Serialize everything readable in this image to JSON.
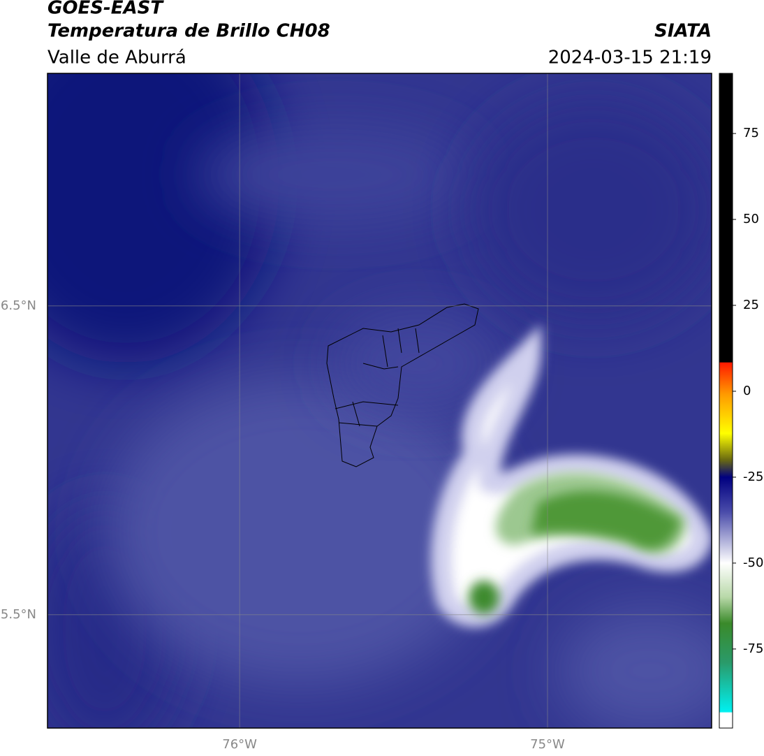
{
  "header": {
    "title": "GOES-EAST",
    "subtitle": "Temperatura de Brillo CH08",
    "region": "Valle de Aburrá",
    "agency": "SIATA",
    "datetime": "2024-03-15 21:19"
  },
  "map": {
    "xlim": [
      -76.624,
      -74.467
    ],
    "ylim": [
      5.133,
      7.253
    ],
    "xticks": [
      {
        "value": -76,
        "label": "76°W"
      },
      {
        "value": -75,
        "label": "75°W"
      }
    ],
    "yticks": [
      {
        "value": 6.5,
        "label": "6.5°N"
      },
      {
        "value": 5.5,
        "label": "5.5°N"
      }
    ],
    "grid": true
  },
  "colorbar": {
    "lim": [
      -98,
      92.5
    ],
    "ticks": [
      75,
      50,
      25,
      0,
      -25,
      -50,
      -75
    ]
  }
}
